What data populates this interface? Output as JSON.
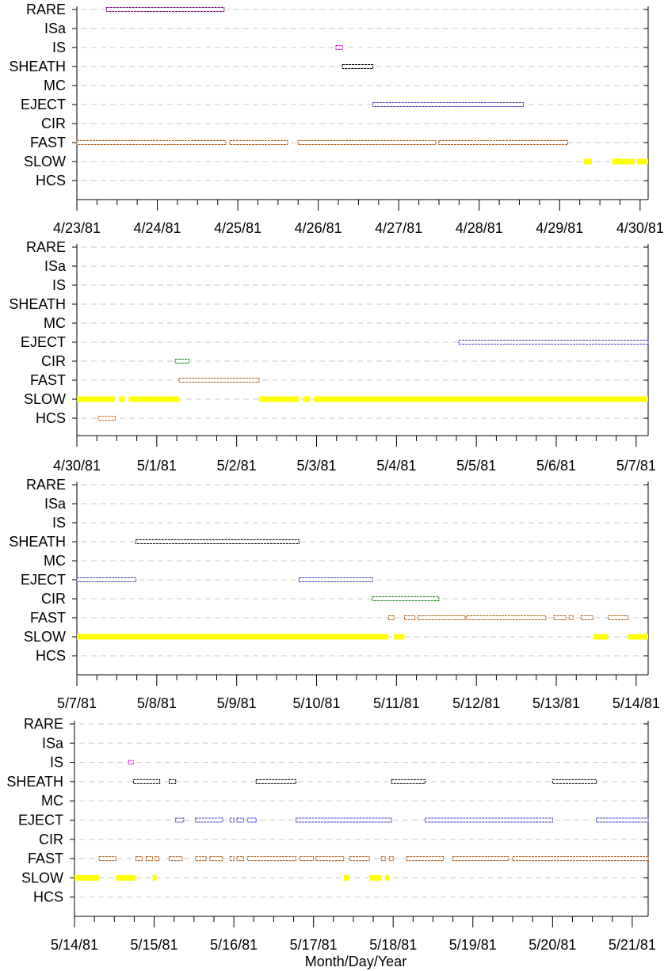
{
  "chart_data": {
    "type": "timeline",
    "xlabel": "Month/Day/Year",
    "categories": [
      "RARE",
      "ISa",
      "IS",
      "SHEATH",
      "MC",
      "EJECT",
      "CIR",
      "FAST",
      "SLOW",
      "HCS"
    ],
    "category_colors": {
      "RARE": "#800080",
      "ISa": "#606060",
      "IS": "#ff00ff",
      "SHEATH": "#000000",
      "MC": "#404040",
      "EJECT": "#4040c0",
      "CIR": "#008000",
      "FAST": "#b05a10",
      "SLOW": "#ffff00",
      "HCS": "#e06000"
    },
    "grid": true,
    "panels": [
      {
        "x_tick_labels": [
          "4/23/81",
          "4/24/81",
          "4/25/81",
          "4/26/81",
          "4/27/81",
          "4/28/81",
          "4/29/81",
          "4/30/81"
        ],
        "xlim_days": [
          0,
          7.1
        ],
        "intervals": [
          {
            "category": "RARE",
            "start": 0.37,
            "end": 1.83
          },
          {
            "category": "IS",
            "start": 3.22,
            "end": 3.3
          },
          {
            "category": "SHEATH",
            "start": 3.3,
            "end": 3.68
          },
          {
            "category": "EJECT",
            "start": 3.68,
            "end": 5.55
          },
          {
            "category": "FAST",
            "start": 0.0,
            "end": 1.85
          },
          {
            "category": "FAST",
            "start": 1.9,
            "end": 2.62
          },
          {
            "category": "FAST",
            "start": 2.75,
            "end": 4.46
          },
          {
            "category": "FAST",
            "start": 4.5,
            "end": 6.1
          },
          {
            "category": "SLOW",
            "start": 6.3,
            "end": 6.4
          },
          {
            "category": "SLOW",
            "start": 6.65,
            "end": 6.93
          },
          {
            "category": "SLOW",
            "start": 6.96,
            "end": 7.1
          }
        ]
      },
      {
        "x_tick_labels": [
          "4/30/81",
          "5/1/81",
          "5/2/81",
          "5/3/81",
          "5/4/81",
          "5/5/81",
          "5/6/81",
          "5/7/81"
        ],
        "xlim_days": [
          0,
          7.15
        ],
        "intervals": [
          {
            "category": "EJECT",
            "start": 4.78,
            "end": 7.15
          },
          {
            "category": "CIR",
            "start": 1.23,
            "end": 1.4
          },
          {
            "category": "FAST",
            "start": 1.28,
            "end": 2.28
          },
          {
            "category": "SLOW",
            "start": 0.0,
            "end": 0.48
          },
          {
            "category": "SLOW",
            "start": 0.53,
            "end": 0.6
          },
          {
            "category": "SLOW",
            "start": 0.65,
            "end": 1.28
          },
          {
            "category": "SLOW",
            "start": 2.28,
            "end": 2.78
          },
          {
            "category": "SLOW",
            "start": 2.83,
            "end": 2.92
          },
          {
            "category": "SLOW",
            "start": 2.97,
            "end": 7.15
          },
          {
            "category": "HCS",
            "start": 0.27,
            "end": 0.48
          }
        ]
      },
      {
        "x_tick_labels": [
          "5/7/81",
          "5/8/81",
          "5/9/81",
          "5/10/81",
          "5/11/81",
          "5/12/81",
          "5/13/81",
          "5/14/81"
        ],
        "xlim_days": [
          0,
          7.15
        ],
        "intervals": [
          {
            "category": "SHEATH",
            "start": 0.74,
            "end": 2.78
          },
          {
            "category": "EJECT",
            "start": 0.0,
            "end": 0.74
          },
          {
            "category": "EJECT",
            "start": 2.78,
            "end": 3.7
          },
          {
            "category": "CIR",
            "start": 3.7,
            "end": 4.53
          },
          {
            "category": "FAST",
            "start": 3.9,
            "end": 3.97
          },
          {
            "category": "FAST",
            "start": 4.1,
            "end": 4.23
          },
          {
            "category": "FAST",
            "start": 4.27,
            "end": 4.86
          },
          {
            "category": "FAST",
            "start": 4.88,
            "end": 5.87
          },
          {
            "category": "FAST",
            "start": 5.97,
            "end": 6.12
          },
          {
            "category": "FAST",
            "start": 6.16,
            "end": 6.21
          },
          {
            "category": "FAST",
            "start": 6.31,
            "end": 6.46
          },
          {
            "category": "FAST",
            "start": 6.65,
            "end": 6.9
          },
          {
            "category": "SLOW",
            "start": 0.0,
            "end": 3.9
          },
          {
            "category": "SLOW",
            "start": 3.97,
            "end": 4.1
          },
          {
            "category": "SLOW",
            "start": 6.46,
            "end": 6.65
          },
          {
            "category": "SLOW",
            "start": 6.9,
            "end": 7.15
          }
        ]
      },
      {
        "x_tick_labels": [
          "5/14/81",
          "5/15/81",
          "5/16/81",
          "5/17/81",
          "5/18/81",
          "5/19/81",
          "5/20/81",
          "5/21/81"
        ],
        "xlim_days": [
          0,
          7.2
        ],
        "intervals": [
          {
            "category": "IS",
            "start": 0.68,
            "end": 0.74
          },
          {
            "category": "SHEATH",
            "start": 0.74,
            "end": 1.07
          },
          {
            "category": "SHEATH",
            "start": 1.19,
            "end": 1.27
          },
          {
            "category": "SHEATH",
            "start": 2.28,
            "end": 2.78
          },
          {
            "category": "SHEATH",
            "start": 3.98,
            "end": 4.4
          },
          {
            "category": "SHEATH",
            "start": 6.0,
            "end": 6.55
          },
          {
            "category": "EJECT",
            "start": 1.27,
            "end": 1.37
          },
          {
            "category": "EJECT",
            "start": 1.52,
            "end": 1.86
          },
          {
            "category": "EJECT",
            "start": 1.95,
            "end": 2.0
          },
          {
            "category": "EJECT",
            "start": 2.04,
            "end": 2.12
          },
          {
            "category": "EJECT",
            "start": 2.17,
            "end": 2.28
          },
          {
            "category": "EJECT",
            "start": 2.78,
            "end": 3.98
          },
          {
            "category": "EJECT",
            "start": 4.4,
            "end": 6.0
          },
          {
            "category": "EJECT",
            "start": 6.55,
            "end": 7.2
          },
          {
            "category": "FAST",
            "start": 0.31,
            "end": 0.52
          },
          {
            "category": "FAST",
            "start": 0.77,
            "end": 0.85
          },
          {
            "category": "FAST",
            "start": 0.9,
            "end": 0.98
          },
          {
            "category": "FAST",
            "start": 1.01,
            "end": 1.06
          },
          {
            "category": "FAST",
            "start": 1.19,
            "end": 1.35
          },
          {
            "category": "FAST",
            "start": 1.52,
            "end": 1.65
          },
          {
            "category": "FAST",
            "start": 1.7,
            "end": 1.86
          },
          {
            "category": "FAST",
            "start": 1.95,
            "end": 2.0
          },
          {
            "category": "FAST",
            "start": 2.04,
            "end": 2.12
          },
          {
            "category": "FAST",
            "start": 2.17,
            "end": 2.78
          },
          {
            "category": "FAST",
            "start": 2.83,
            "end": 3.0
          },
          {
            "category": "FAST",
            "start": 3.03,
            "end": 3.38
          },
          {
            "category": "FAST",
            "start": 3.45,
            "end": 3.7
          },
          {
            "category": "FAST",
            "start": 3.85,
            "end": 3.9
          },
          {
            "category": "FAST",
            "start": 3.95,
            "end": 4.0
          },
          {
            "category": "FAST",
            "start": 4.17,
            "end": 4.63
          },
          {
            "category": "FAST",
            "start": 4.75,
            "end": 5.45
          },
          {
            "category": "FAST",
            "start": 5.5,
            "end": 7.2
          },
          {
            "category": "SLOW",
            "start": 0.0,
            "end": 0.31
          },
          {
            "category": "SLOW",
            "start": 0.52,
            "end": 0.77
          },
          {
            "category": "SLOW",
            "start": 0.98,
            "end": 1.03
          },
          {
            "category": "SLOW",
            "start": 3.38,
            "end": 3.45
          },
          {
            "category": "SLOW",
            "start": 3.7,
            "end": 3.85
          },
          {
            "category": "SLOW",
            "start": 3.9,
            "end": 3.95
          }
        ]
      }
    ]
  }
}
